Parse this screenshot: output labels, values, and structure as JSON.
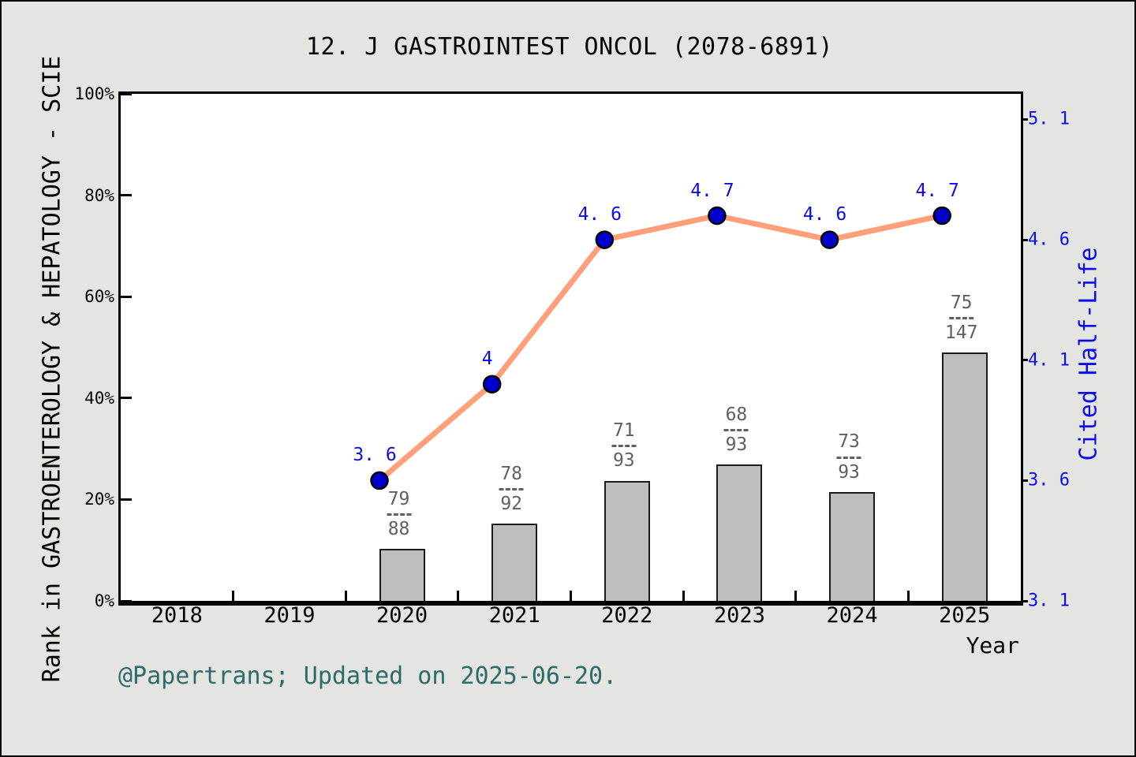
{
  "title": "12. J GASTROINTEST ONCOL (2078-6891)",
  "footer": "@Papertrans; Updated on 2025-06-20.",
  "axes": {
    "left_label": "Rank in GASTROENTEROLOGY & HEPATOLOGY - SCIE",
    "right_label": "Cited Half-Life",
    "x_label": "Year",
    "x_ticks": [
      "2018",
      "2019",
      "2020",
      "2021",
      "2022",
      "2023",
      "2024",
      "2025"
    ],
    "left_ticks": [
      "0%",
      "20%",
      "40%",
      "60%",
      "80%",
      "100%"
    ],
    "left_tick_values": [
      0,
      20,
      40,
      60,
      80,
      100
    ],
    "right_ticks": [
      "3. 1",
      "3. 6",
      "4. 1",
      "4. 6",
      "5. 1"
    ],
    "right_tick_values": [
      3.1,
      3.6,
      4.1,
      4.6,
      5.1
    ]
  },
  "colors": {
    "background": "#E4E4E1",
    "plot_bg": "#FFFFFF",
    "frame": "#000000",
    "bar_fill": "#BEBEBE",
    "bar_border": "#1A1A1A",
    "fraction_text": "#606060",
    "line": "#FFA07A",
    "marker": "#0000CC",
    "marker_border": "#000000",
    "right_axis": "#0B0BEE",
    "footer_text": "#2B6B6B"
  },
  "chart_data": [
    {
      "type": "bar",
      "title": "12. J GASTROINTEST ONCOL (2078-6891)",
      "ylabel": "Rank in GASTROENTEROLOGY & HEPATOLOGY - SCIE",
      "xlabel": "Year",
      "ylim": [
        0,
        100
      ],
      "grid": false,
      "categories": [
        "2020",
        "2021",
        "2022",
        "2023",
        "2024",
        "2025"
      ],
      "values": [
        10.2,
        15.2,
        23.7,
        26.9,
        21.5,
        49.0
      ],
      "rank_fractions": [
        {
          "numerator": "79",
          "denominator": "88"
        },
        {
          "numerator": "78",
          "denominator": "92"
        },
        {
          "numerator": "71",
          "denominator": "93"
        },
        {
          "numerator": "68",
          "denominator": "93"
        },
        {
          "numerator": "73",
          "denominator": "93"
        },
        {
          "numerator": "75",
          "denominator": "147"
        }
      ]
    },
    {
      "type": "line",
      "ylabel": "Cited Half-Life",
      "ylim": [
        3.1,
        5.1
      ],
      "categories": [
        "2020",
        "2021",
        "2022",
        "2023",
        "2024",
        "2025"
      ],
      "values": [
        3.6,
        4.0,
        4.6,
        4.7,
        4.6,
        4.7
      ],
      "point_labels": [
        "3. 6",
        "4",
        "4. 6",
        "4. 7",
        "4. 6",
        "4. 7"
      ]
    }
  ]
}
